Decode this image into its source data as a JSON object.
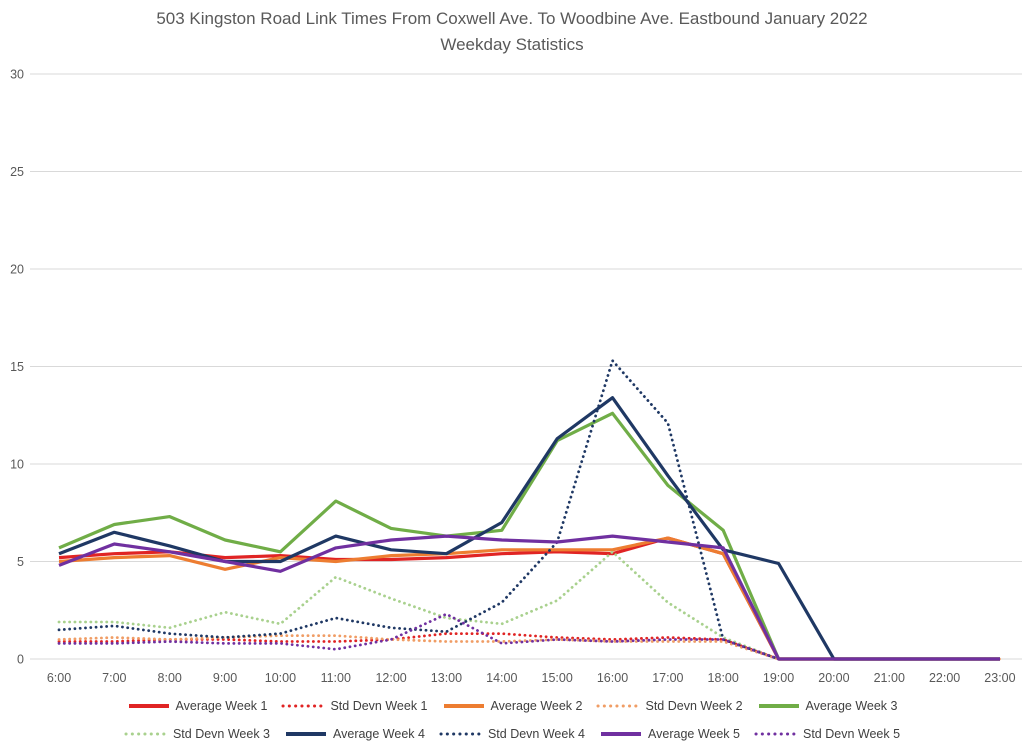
{
  "title": {
    "line1": "503 Kingston Road Link Times From Coxwell Ave. To Woodbine Ave. Eastbound January 2022",
    "line2": "Weekday Statistics"
  },
  "colors": {
    "axis_text": "#595959",
    "gridline": "#D9D9D9",
    "legend_text": "#404040",
    "week1_red": "#E02424",
    "week2_orange": "#ED7D31",
    "week2_std_orange_light": "#F09D65",
    "week3_green": "#70AD47",
    "week3_std_green_light": "#A9D18E",
    "week4_navy": "#1F3864",
    "week5_purple": "#7030A0"
  },
  "chart_data": {
    "type": "line",
    "title": "503 Kingston Road Link Times From Coxwell Ave. To Woodbine Ave. Eastbound January 2022 Weekday Statistics",
    "xlabel": "",
    "ylabel": "",
    "x": [
      "6:00",
      "7:00",
      "8:00",
      "9:00",
      "10:00",
      "11:00",
      "12:00",
      "13:00",
      "14:00",
      "15:00",
      "16:00",
      "17:00",
      "18:00",
      "19:00",
      "20:00",
      "21:00",
      "22:00",
      "23:00"
    ],
    "ylim": [
      0,
      30
    ],
    "yticks": [
      0,
      5,
      10,
      15,
      20,
      25,
      30
    ],
    "grid": "horizontal",
    "legend_position": "bottom",
    "series": [
      {
        "name": "Average Week 1",
        "style": "solid",
        "color": "#E02424",
        "values": [
          5.2,
          5.4,
          5.5,
          5.2,
          5.3,
          5.1,
          5.1,
          5.2,
          5.4,
          5.5,
          5.4,
          6.2,
          5.4,
          0,
          0,
          0,
          0,
          0
        ]
      },
      {
        "name": "Std Devn Week 1",
        "style": "dotted",
        "color": "#E02424",
        "values": [
          0.9,
          0.9,
          1.0,
          1.0,
          0.9,
          0.9,
          1.0,
          1.3,
          1.3,
          1.1,
          1.0,
          1.1,
          1.0,
          0,
          0,
          0,
          0,
          0
        ]
      },
      {
        "name": "Average Week 2",
        "style": "solid",
        "color": "#ED7D31",
        "values": [
          5.0,
          5.2,
          5.3,
          4.6,
          5.2,
          5.0,
          5.3,
          5.4,
          5.6,
          5.6,
          5.6,
          6.2,
          5.4,
          0,
          0,
          0,
          0,
          0
        ]
      },
      {
        "name": "Std Devn Week 2",
        "style": "dotted",
        "color": "#F09D65",
        "values": [
          1.0,
          1.1,
          1.0,
          1.1,
          1.2,
          1.2,
          1.0,
          0.9,
          0.9,
          1.0,
          0.9,
          0.9,
          0.9,
          0,
          0,
          0,
          0,
          0
        ]
      },
      {
        "name": "Average Week 3",
        "style": "solid",
        "color": "#70AD47",
        "values": [
          5.7,
          6.9,
          7.3,
          6.1,
          5.5,
          8.1,
          6.7,
          6.3,
          6.6,
          11.2,
          12.6,
          8.9,
          6.6,
          0,
          0,
          0,
          0,
          0
        ]
      },
      {
        "name": "Std Devn Week 3",
        "style": "dotted",
        "color": "#A9D18E",
        "values": [
          1.9,
          1.9,
          1.6,
          2.4,
          1.8,
          4.2,
          3.1,
          2.1,
          1.8,
          3.0,
          5.5,
          2.9,
          1.1,
          0,
          0,
          0,
          0,
          0
        ]
      },
      {
        "name": "Average Week 4",
        "style": "solid",
        "color": "#1F3864",
        "values": [
          5.4,
          6.5,
          5.8,
          5.0,
          5.0,
          6.3,
          5.6,
          5.4,
          7.0,
          11.3,
          13.4,
          9.4,
          5.6,
          4.9,
          0,
          0,
          0,
          0
        ]
      },
      {
        "name": "Std Devn Week 4",
        "style": "dotted",
        "color": "#1F3864",
        "values": [
          1.5,
          1.7,
          1.3,
          1.1,
          1.3,
          2.1,
          1.6,
          1.4,
          2.9,
          6.0,
          15.3,
          12.1,
          1.0,
          0,
          0,
          0,
          0,
          0
        ]
      },
      {
        "name": "Average Week 5",
        "style": "solid",
        "color": "#7030A0",
        "values": [
          4.8,
          5.9,
          5.5,
          5.0,
          4.5,
          5.7,
          6.1,
          6.3,
          6.1,
          6.0,
          6.3,
          6.0,
          5.7,
          0,
          0,
          0,
          0,
          0
        ]
      },
      {
        "name": "Std Devn Week 5",
        "style": "dotted",
        "color": "#7030A0",
        "values": [
          0.8,
          0.8,
          0.9,
          0.8,
          0.8,
          0.5,
          1.0,
          2.3,
          0.8,
          1.0,
          0.9,
          1.0,
          1.0,
          0,
          0,
          0,
          0,
          0
        ]
      }
    ]
  },
  "legend": {
    "rows": [
      [
        "Average Week 1",
        "Std Devn Week 1",
        "Average Week 2",
        "Std Devn Week 2",
        "Average Week 3"
      ],
      [
        "Std Devn Week 3",
        "Average Week 4",
        "Std Devn Week 4",
        "Average Week 5",
        "Std Devn Week 5"
      ]
    ]
  }
}
